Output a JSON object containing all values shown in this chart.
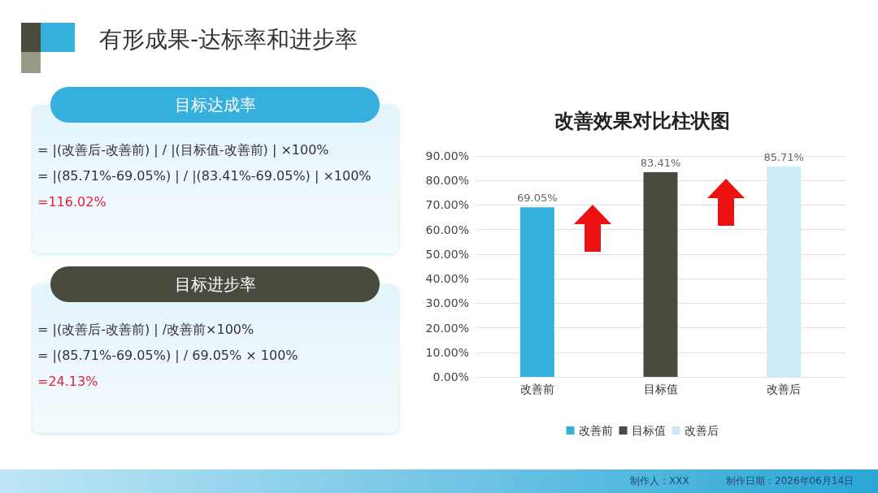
{
  "chart_data": [
    {
      "type": "other",
      "title": "有形成果-达标率和进步率",
      "annotations": [
        "目标达成率",
        "= |(改善后-改善前) | / |(目标值-改善前) | ×100%",
        "= |(85.71%-69.05%) | / |(83.41%-69.05%) | ×100%",
        "=116.02%",
        "目标进步率",
        "= |(改善后-改善前) | /改善前×100%",
        "= |(85.71%-69.05%) | / 69.05% × 100%",
        "=24.13%",
        "制作人：XXX",
        "制作日期：2026年06月14日"
      ]
    },
    {
      "type": "bar",
      "title": "改善效果对比柱状图",
      "categories": [
        "改善前",
        "目标值",
        "改善后"
      ],
      "series": [
        {
          "name": "改善前",
          "color": "#35b0dc",
          "values": [
            69.05,
            null,
            null
          ],
          "value_labels": [
            "69.05%",
            null,
            null
          ]
        },
        {
          "name": "目标值",
          "color": "#4a4a3e",
          "values": [
            null,
            83.41,
            null
          ],
          "value_labels": [
            null,
            "83.41%",
            null
          ]
        },
        {
          "name": "改善后",
          "color": "#cdeaf8",
          "values": [
            null,
            null,
            85.71
          ],
          "value_labels": [
            null,
            null,
            "85.71%"
          ]
        }
      ],
      "ylim": [
        0,
        90
      ],
      "yticks": [
        {
          "value": 0,
          "label": "0.00%"
        },
        {
          "value": 10,
          "label": "10.00%"
        },
        {
          "value": 20,
          "label": "20.00%"
        },
        {
          "value": 30,
          "label": "30.00%"
        },
        {
          "value": 40,
          "label": "40.00%"
        },
        {
          "value": 50,
          "label": "50.00%"
        },
        {
          "value": 60,
          "label": "60.00%"
        },
        {
          "value": 70,
          "label": "70.00%"
        },
        {
          "value": 80,
          "label": "80.00%"
        },
        {
          "value": 90,
          "label": "90.00%"
        }
      ],
      "grid": "y",
      "legend": "bottom"
    }
  ]
}
